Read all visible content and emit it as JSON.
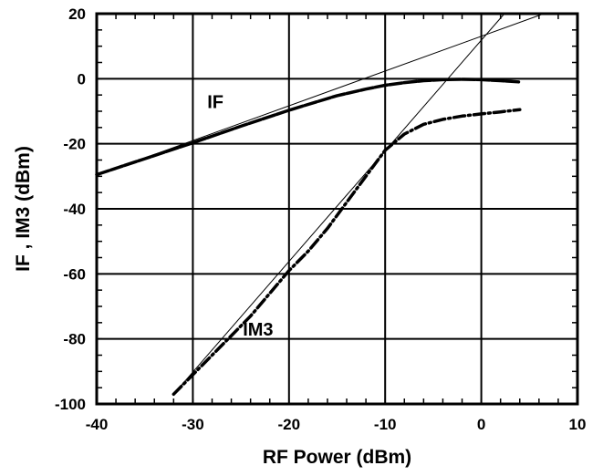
{
  "chart_data": {
    "type": "line",
    "title": "",
    "xlabel": "RF Power (dBm)",
    "ylabel": "IF , IM3 (dBm)",
    "xlim": [
      -40,
      10
    ],
    "ylim": [
      -100,
      20
    ],
    "x_ticks": [
      -40,
      -30,
      -20,
      -10,
      0,
      10
    ],
    "y_ticks": [
      20,
      0,
      -20,
      -40,
      -60,
      -80,
      -100
    ],
    "x_tick_labels": [
      "-40",
      "-30",
      "-20",
      "-10",
      "0",
      "10"
    ],
    "y_tick_labels": [
      "20",
      "0",
      "-20",
      "-40",
      "-60",
      "-80",
      "-100"
    ],
    "grid": true,
    "annotations": [
      {
        "text": "IF",
        "x": -28.5,
        "y": -9
      },
      {
        "text": "IM3",
        "x": -24.8,
        "y": -79
      }
    ],
    "series": [
      {
        "style": "dashed",
        "x": [
          -40,
          -35,
          -30,
          -25,
          -20,
          -15,
          -12,
          -10,
          -8,
          -6,
          -4,
          -2,
          0,
          2,
          4
        ],
        "y": [
          -29.5,
          -24.6,
          -19.7,
          -14.6,
          -9.7,
          -5.2,
          -3.2,
          -2.0,
          -1.2,
          -0.6,
          -0.3,
          -0.2,
          -0.3,
          -0.6,
          -1.0
        ]
      },
      {
        "style": "dash-dot",
        "x": [
          -32,
          -30,
          -28,
          -26,
          -24,
          -22,
          -20,
          -18,
          -16,
          -14,
          -12,
          -10,
          -8,
          -6,
          -4,
          -2,
          0,
          2,
          4
        ],
        "y": [
          -97,
          -91,
          -85,
          -79,
          -73,
          -66,
          -59,
          -53,
          -46,
          -38,
          -30,
          -22,
          -17,
          -14,
          -12.5,
          -11.5,
          -10.8,
          -10.2,
          -9.5
        ]
      },
      {
        "style": "thin-solid",
        "x": [
          -40,
          6.5
        ],
        "y": [
          -29.7,
          20
        ]
      },
      {
        "style": "thin-solid",
        "x": [
          -32,
          2.4
        ],
        "y": [
          -97,
          20
        ]
      }
    ]
  }
}
